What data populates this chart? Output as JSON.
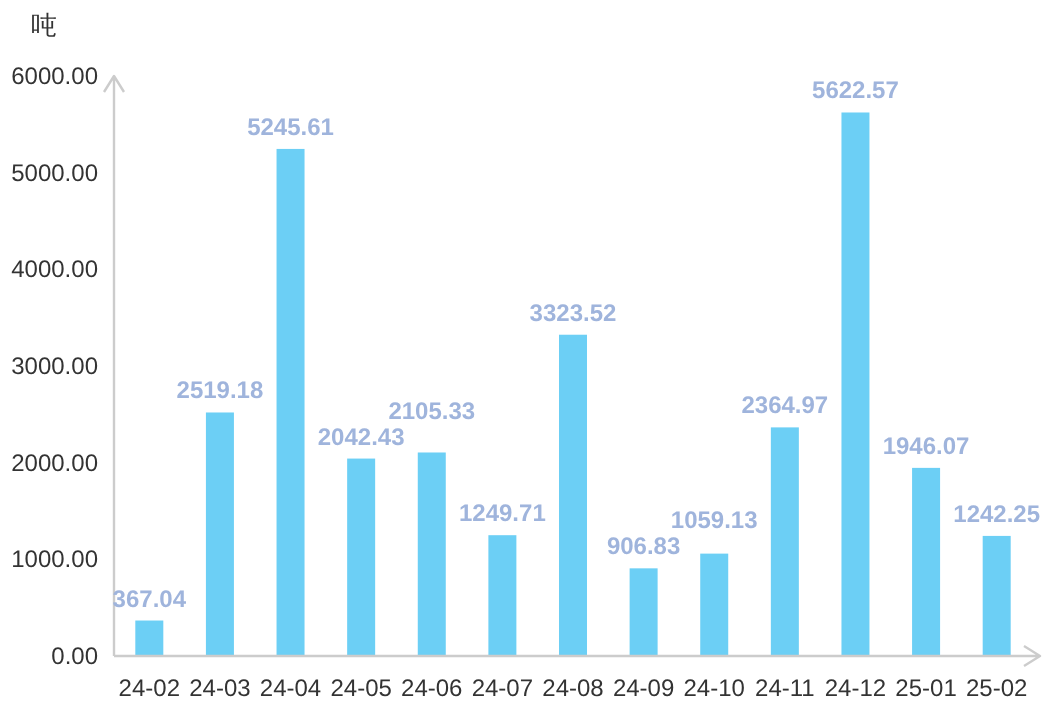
{
  "chart_data": {
    "type": "bar",
    "ylabel": "吨",
    "categories": [
      "24-02",
      "24-03",
      "24-04",
      "24-05",
      "24-06",
      "24-07",
      "24-08",
      "24-09",
      "24-10",
      "24-11",
      "24-12",
      "25-01",
      "25-02"
    ],
    "values": [
      367.04,
      2519.18,
      5245.61,
      2042.43,
      2105.33,
      1249.71,
      3323.52,
      906.83,
      1059.13,
      2364.97,
      5622.57,
      1946.07,
      1242.25
    ],
    "color": "#6ccff5",
    "ylim": [
      0,
      6000
    ],
    "yticks": [
      {
        "value": 0,
        "label": "0.00"
      },
      {
        "value": 1000,
        "label": "1000.00"
      },
      {
        "value": 2000,
        "label": "2000.00"
      },
      {
        "value": 3000,
        "label": "3000.00"
      },
      {
        "value": 4000,
        "label": "4000.00"
      },
      {
        "value": 5000,
        "label": "5000.00"
      },
      {
        "value": 6000,
        "label": "6000.00"
      }
    ],
    "data_labels": true
  }
}
